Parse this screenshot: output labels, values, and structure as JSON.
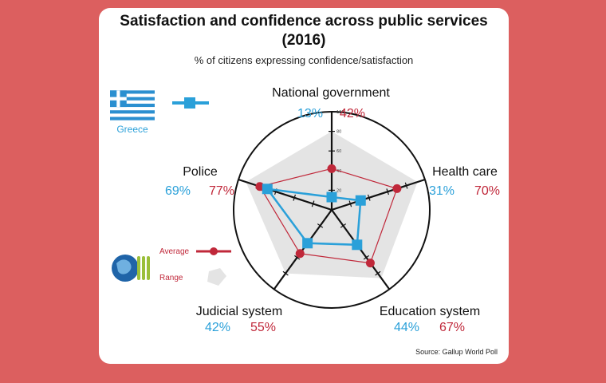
{
  "title_line1": "Satisfaction and confidence across public services",
  "title_line2": "(2016)",
  "subtitle": "% of citizens expressing confidence/satisfaction",
  "source": "Source: Gallup World Poll",
  "legend": {
    "country": "Greece",
    "average": "Average",
    "range": "Range"
  },
  "colors": {
    "greece": "#2aa0d9",
    "average": "#c0283a",
    "range": "#e4e4e4",
    "background": "#dc5f5f"
  },
  "icons": [
    "greek-flag-icon",
    "oecd-globe-logo-icon"
  ],
  "chart_data": {
    "type": "radar",
    "title": "Satisfaction and confidence across public services (2016)",
    "categories": [
      "National government",
      "Health care",
      "Education system",
      "Judicial system",
      "Police"
    ],
    "rlim": [
      0,
      100
    ],
    "r_ticks": [
      20,
      40,
      60,
      80,
      100
    ],
    "tick_labels": [
      "20",
      "40",
      "60",
      "80",
      "100"
    ],
    "series": [
      {
        "name": "Greece",
        "values": [
          13,
          31,
          44,
          42,
          69
        ]
      },
      {
        "name": "Average",
        "values": [
          42,
          70,
          67,
          55,
          77
        ]
      }
    ],
    "range_upper": [
      80,
      92,
      86,
      80,
      92
    ],
    "labels_greece": [
      "13%",
      "31%",
      "44%",
      "42%",
      "69%"
    ],
    "labels_average": [
      "42%",
      "70%",
      "67%",
      "55%",
      "77%"
    ]
  }
}
